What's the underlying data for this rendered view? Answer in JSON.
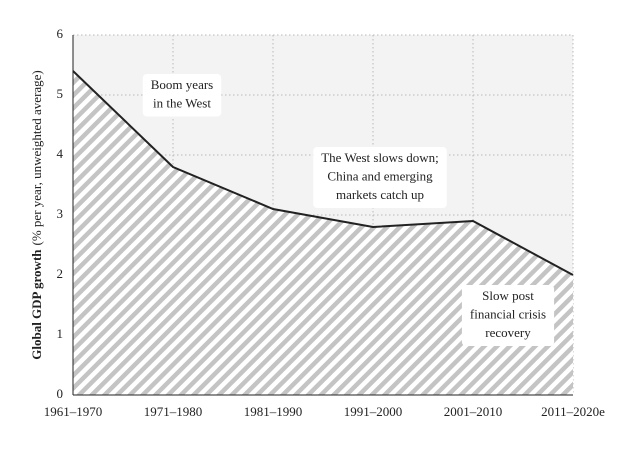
{
  "chart_data": {
    "type": "area",
    "ylabel": "Global GDP growth",
    "ylabel_note": "(% per year, unweighted average)",
    "categories": [
      "1961–1970",
      "1971–1980",
      "1981–1990",
      "1991–2000",
      "2001–2010",
      "2011–2020e"
    ],
    "values": [
      5.4,
      3.8,
      3.1,
      2.8,
      2.9,
      2.0
    ],
    "color": "#222222",
    "ylim": [
      0,
      6
    ],
    "yticks": [
      0,
      1,
      2,
      3,
      4,
      5,
      6
    ],
    "grid": true,
    "annotations": [
      [
        "Boom years",
        "in the West"
      ],
      [
        "The West slows down;",
        "China and emerging",
        "markets catch up"
      ],
      [
        "Slow post",
        "financial crisis",
        "recovery"
      ]
    ]
  }
}
